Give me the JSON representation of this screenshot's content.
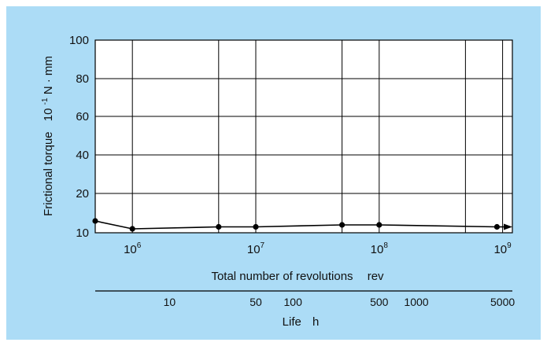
{
  "chart_data": {
    "type": "line",
    "x_scale": "log",
    "xlabel": "Total number of revolutions",
    "xlabel_unit": "rev",
    "ylabel": "Frictional torque",
    "ylabel_unit_prefix": "10",
    "ylabel_unit_exp": "-1",
    "ylabel_unit_suffix": "N · mm",
    "ylim": [
      10,
      100
    ],
    "yticks": [
      10,
      20,
      40,
      60,
      80,
      100
    ],
    "xlim": [
      500000,
      1200000000
    ],
    "xticks": [
      {
        "value": 1000000,
        "base": "10",
        "exp": "6"
      },
      {
        "value": 10000000,
        "base": "10",
        "exp": "7"
      },
      {
        "value": 100000000,
        "base": "10",
        "exp": "8"
      },
      {
        "value": 1000000000,
        "base": "10",
        "exp": "9"
      }
    ],
    "minor_gridlines_x": [
      5000000,
      50000000,
      500000000
    ],
    "grid": true,
    "series": [
      {
        "points": [
          {
            "x": 500000,
            "y": 13
          },
          {
            "x": 1000000,
            "y": 11
          },
          {
            "x": 5000000,
            "y": 11.5
          },
          {
            "x": 10000000,
            "y": 11.5
          },
          {
            "x": 50000000,
            "y": 12
          },
          {
            "x": 100000000,
            "y": 12
          },
          {
            "x": 900000000,
            "y": 11.5
          }
        ],
        "arrow_to": 1200000000,
        "color": "#000000"
      }
    ],
    "secondary_axis": {
      "label": "Life",
      "unit": "h",
      "ticks": [
        "10",
        "50",
        "100",
        "500",
        "1000",
        "5000"
      ],
      "tick_rev_equivalents": [
        2000000,
        10000000,
        20000000,
        100000000,
        200000000,
        1000000000
      ]
    }
  }
}
